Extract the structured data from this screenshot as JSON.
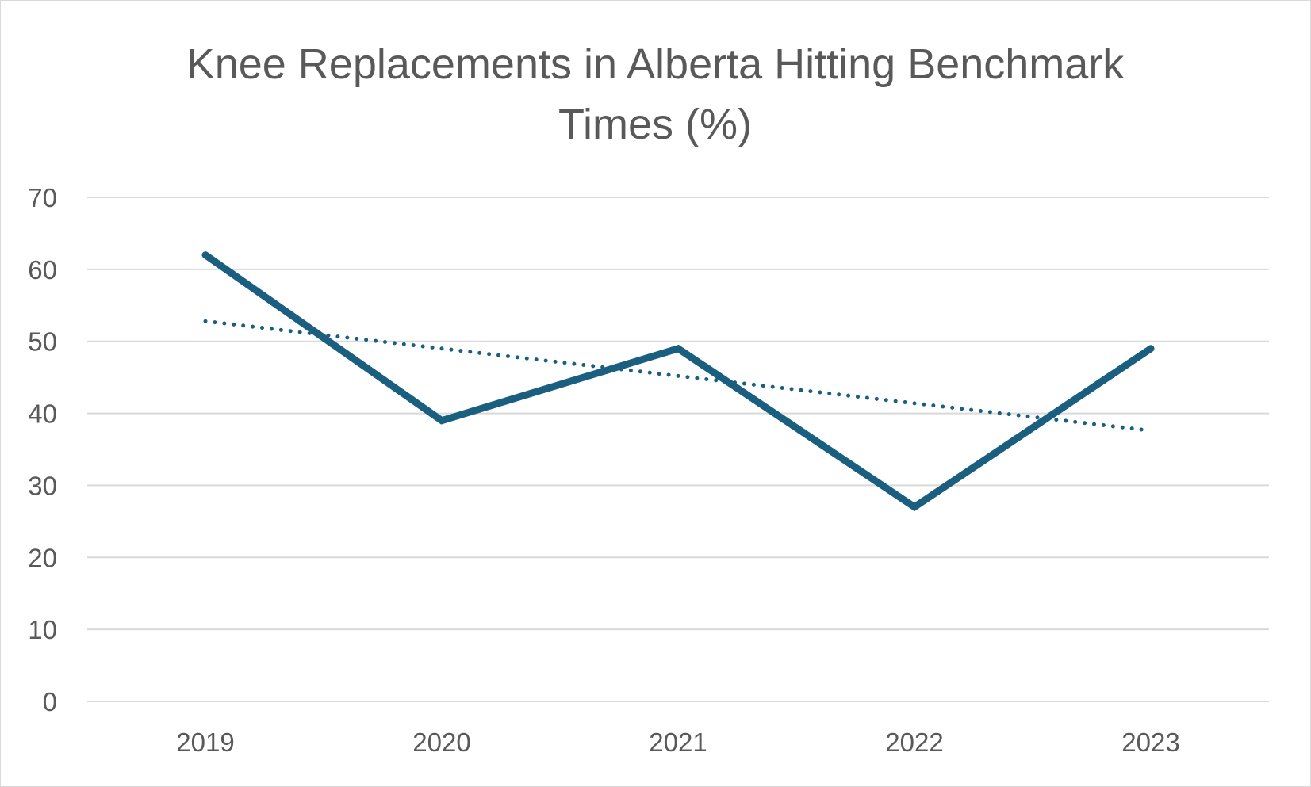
{
  "chart_data": {
    "type": "line",
    "title": "Knee Replacements in Alberta Hitting Benchmark Times (%)",
    "xlabel": "",
    "ylabel": "",
    "categories": [
      "2019",
      "2020",
      "2021",
      "2022",
      "2023"
    ],
    "series": [
      {
        "values": [
          62,
          39,
          49,
          27,
          49
        ],
        "color": "#1a5f80",
        "style": "solid"
      }
    ],
    "trendline": {
      "type": "linear",
      "values": [
        52.8,
        49.0,
        45.2,
        41.4,
        37.6
      ],
      "color": "#1a5f80",
      "style": "dotted"
    },
    "ylim": [
      0,
      70
    ],
    "yticks": [
      0,
      10,
      20,
      30,
      40,
      50,
      60,
      70
    ],
    "grid": true,
    "legend": "none",
    "gridColor": "#d9d9d9",
    "textColor": "#595959"
  }
}
